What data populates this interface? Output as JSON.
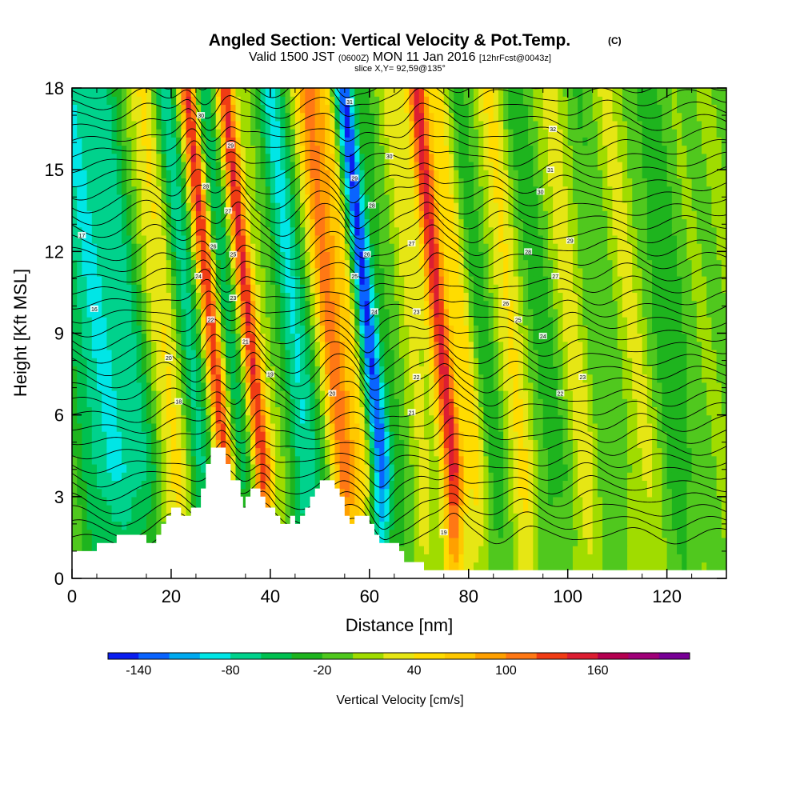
{
  "title": {
    "main": "Angled Section: Vertical Velocity & Pot.Temp.",
    "mark": "(C)",
    "valid_prefix": "Valid 1500 JST",
    "valid_zulu": "(0600Z)",
    "valid_date": "MON 11 Jan 2016",
    "forecast": "[12hrFcst@0043z]",
    "slice": "slice X,Y= 92,59@135°"
  },
  "chart_data": {
    "type": "heatmap",
    "xlabel": "Distance [nm]",
    "ylabel": "Height [Kft MSL]",
    "xlim": [
      0,
      132
    ],
    "ylim": [
      0,
      18
    ],
    "x_ticks": [
      0,
      20,
      40,
      60,
      80,
      100,
      120
    ],
    "y_ticks": [
      0,
      3,
      6,
      9,
      12,
      15,
      18
    ],
    "colorbar": {
      "label": "Vertical Velocity [cm/s]",
      "tick_labels": [
        "-140",
        "-80",
        "-20",
        "40",
        "100",
        "160"
      ],
      "tick_values": [
        -140,
        -80,
        -20,
        40,
        100,
        160
      ],
      "levels": [
        -160,
        -140,
        -120,
        -100,
        -80,
        -60,
        -40,
        -20,
        0,
        20,
        40,
        60,
        80,
        100,
        120,
        140,
        160,
        180
      ],
      "colors": [
        "#0a1ef0",
        "#0a64ff",
        "#00aaf0",
        "#00e6e6",
        "#00d28c",
        "#00c050",
        "#1eb41e",
        "#50c81e",
        "#a0dc00",
        "#e6e614",
        "#ffdc00",
        "#ffc800",
        "#ffa000",
        "#ff7814",
        "#f03c14",
        "#dc1e32",
        "#b40050",
        "#a00078",
        "#780096"
      ]
    },
    "velocity_bands": [
      {
        "x": 5,
        "w": 4,
        "v": -50
      },
      {
        "x": 9,
        "w": 4,
        "v": -40
      },
      {
        "x": 14,
        "w": 5,
        "v": -60
      },
      {
        "x": 19,
        "w": 3,
        "v": 20
      },
      {
        "x": 22,
        "w": 3,
        "v": 45
      },
      {
        "x": 26,
        "w": 2.5,
        "v": -75
      },
      {
        "x": 31,
        "w": 1.8,
        "v": 150
      },
      {
        "x": 34,
        "w": 2.5,
        "v": -55
      },
      {
        "x": 38.5,
        "w": 1.8,
        "v": 140
      },
      {
        "x": 42.5,
        "w": 2.5,
        "v": 10
      },
      {
        "x": 47.5,
        "w": 3,
        "v": -85
      },
      {
        "x": 55,
        "w": 2.5,
        "v": 110
      },
      {
        "x": 58.5,
        "w": 2,
        "v": 50
      },
      {
        "x": 62.5,
        "w": 2,
        "v": -140
      },
      {
        "x": 67,
        "w": 2.5,
        "v": -25
      },
      {
        "x": 71,
        "w": 2.5,
        "v": 30
      },
      {
        "x": 77,
        "w": 2,
        "v": 150
      },
      {
        "x": 81.5,
        "w": 2.5,
        "v": 50
      },
      {
        "x": 85.5,
        "w": 2.5,
        "v": -35
      },
      {
        "x": 91.5,
        "w": 2.5,
        "v": 50
      },
      {
        "x": 97,
        "w": 3.5,
        "v": -30
      },
      {
        "x": 104,
        "w": 2.5,
        "v": 35
      },
      {
        "x": 109,
        "w": 3,
        "v": -20
      },
      {
        "x": 116,
        "w": 3,
        "v": 25
      },
      {
        "x": 123,
        "w": 4,
        "v": -30
      }
    ],
    "terrain": [
      [
        0,
        1
      ],
      [
        5,
        1
      ],
      [
        5,
        1.3
      ],
      [
        9,
        1.3
      ],
      [
        9,
        1.6
      ],
      [
        15,
        1.6
      ],
      [
        15,
        1.3
      ],
      [
        17,
        1.3
      ],
      [
        17,
        1.6
      ],
      [
        18,
        1.6
      ],
      [
        18,
        2
      ],
      [
        19,
        2
      ],
      [
        19,
        2.3
      ],
      [
        20,
        2.3
      ],
      [
        20,
        2.6
      ],
      [
        22,
        2.6
      ],
      [
        22,
        2.3
      ],
      [
        24,
        2.3
      ],
      [
        24,
        2.6
      ],
      [
        26,
        2.6
      ],
      [
        26,
        3.3
      ],
      [
        27,
        3.3
      ],
      [
        27,
        4.2
      ],
      [
        28,
        4.2
      ],
      [
        28,
        4.8
      ],
      [
        31,
        4.8
      ],
      [
        31,
        4.2
      ],
      [
        32,
        4.2
      ],
      [
        32,
        3.6
      ],
      [
        34,
        3.6
      ],
      [
        34,
        3
      ],
      [
        34.5,
        3
      ],
      [
        34.5,
        2.6
      ],
      [
        35,
        2.6
      ],
      [
        35,
        3
      ],
      [
        36,
        3
      ],
      [
        36,
        3.3
      ],
      [
        38,
        3.3
      ],
      [
        38,
        3
      ],
      [
        39,
        3
      ],
      [
        39,
        2.6
      ],
      [
        41,
        2.6
      ],
      [
        41,
        2.3
      ],
      [
        42,
        2.3
      ],
      [
        42,
        2
      ],
      [
        44,
        2
      ],
      [
        44,
        2.3
      ],
      [
        45,
        2.3
      ],
      [
        45,
        2
      ],
      [
        46,
        2
      ],
      [
        46,
        2.3
      ],
      [
        47,
        2.3
      ],
      [
        47,
        2.6
      ],
      [
        48,
        2.6
      ],
      [
        48,
        3
      ],
      [
        49,
        3
      ],
      [
        49,
        3.3
      ],
      [
        50,
        3.3
      ],
      [
        50,
        3.6
      ],
      [
        53,
        3.6
      ],
      [
        53,
        3.3
      ],
      [
        54,
        3.3
      ],
      [
        54,
        3
      ],
      [
        55,
        3
      ],
      [
        55,
        2.3
      ],
      [
        56,
        2.3
      ],
      [
        56,
        2
      ],
      [
        57,
        2
      ],
      [
        57,
        2.3
      ],
      [
        60,
        2.3
      ],
      [
        60,
        2
      ],
      [
        61,
        2
      ],
      [
        61,
        1.6
      ],
      [
        62,
        1.6
      ],
      [
        62,
        1.3
      ],
      [
        66,
        1.3
      ],
      [
        66,
        1
      ],
      [
        67,
        1
      ],
      [
        67,
        0.6
      ],
      [
        71,
        0.6
      ],
      [
        71,
        0.3
      ],
      [
        132,
        0.3
      ]
    ],
    "theta_labels": [
      {
        "x": 26,
        "y": 17,
        "t": "30"
      },
      {
        "x": 32,
        "y": 15.9,
        "t": "29"
      },
      {
        "x": 27,
        "y": 14.4,
        "t": "28"
      },
      {
        "x": 31.5,
        "y": 13.5,
        "t": "27"
      },
      {
        "x": 28.5,
        "y": 12.2,
        "t": "26"
      },
      {
        "x": 32.5,
        "y": 11.9,
        "t": "25"
      },
      {
        "x": 25.5,
        "y": 11.1,
        "t": "24"
      },
      {
        "x": 32.5,
        "y": 10.3,
        "t": "23"
      },
      {
        "x": 28,
        "y": 9.5,
        "t": "22"
      },
      {
        "x": 35,
        "y": 8.7,
        "t": "21"
      },
      {
        "x": 19.5,
        "y": 8.1,
        "t": "20"
      },
      {
        "x": 40,
        "y": 7.5,
        "t": "19"
      },
      {
        "x": 21.5,
        "y": 6.5,
        "t": "18"
      },
      {
        "x": 2,
        "y": 12.6,
        "t": "17"
      },
      {
        "x": 4.5,
        "y": 9.9,
        "t": "16"
      },
      {
        "x": 56,
        "y": 17.5,
        "t": "31"
      },
      {
        "x": 64,
        "y": 15.5,
        "t": "30"
      },
      {
        "x": 57,
        "y": 14.7,
        "t": "29"
      },
      {
        "x": 60.5,
        "y": 13.7,
        "t": "28"
      },
      {
        "x": 68.5,
        "y": 12.3,
        "t": "27"
      },
      {
        "x": 59.5,
        "y": 11.9,
        "t": "26"
      },
      {
        "x": 57,
        "y": 11.1,
        "t": "25"
      },
      {
        "x": 61,
        "y": 9.8,
        "t": "24"
      },
      {
        "x": 69.5,
        "y": 9.8,
        "t": "23"
      },
      {
        "x": 69.5,
        "y": 7.4,
        "t": "22"
      },
      {
        "x": 68.5,
        "y": 6.1,
        "t": "21"
      },
      {
        "x": 52.5,
        "y": 6.8,
        "t": "20"
      },
      {
        "x": 75,
        "y": 1.7,
        "t": "19"
      },
      {
        "x": 97,
        "y": 16.5,
        "t": "32"
      },
      {
        "x": 96.5,
        "y": 15,
        "t": "31"
      },
      {
        "x": 94.5,
        "y": 14.2,
        "t": "30"
      },
      {
        "x": 100.5,
        "y": 12.4,
        "t": "29"
      },
      {
        "x": 92,
        "y": 12,
        "t": "28"
      },
      {
        "x": 97.5,
        "y": 11.1,
        "t": "27"
      },
      {
        "x": 87.5,
        "y": 10.1,
        "t": "26"
      },
      {
        "x": 90,
        "y": 9.5,
        "t": "25"
      },
      {
        "x": 95,
        "y": 8.9,
        "t": "24"
      },
      {
        "x": 103,
        "y": 7.4,
        "t": "23"
      },
      {
        "x": 98.5,
        "y": 6.8,
        "t": "22"
      }
    ]
  }
}
